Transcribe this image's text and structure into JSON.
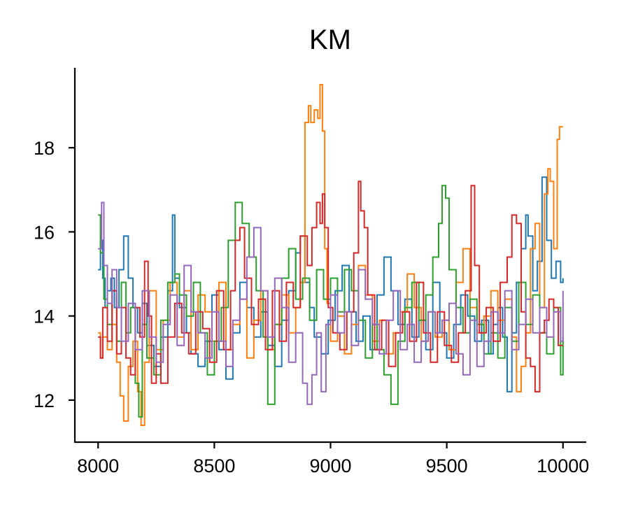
{
  "chart_data": {
    "type": "line",
    "title": "KM",
    "xlabel": "",
    "ylabel": "",
    "xlim": [
      7900,
      10100
    ],
    "ylim": [
      11,
      19.9
    ],
    "xticks": [
      8000,
      8500,
      9000,
      9500,
      10000
    ],
    "yticks": [
      12,
      14,
      16,
      18
    ],
    "xtick_labels": [
      "8000",
      "8500",
      "9000",
      "9500",
      "10000"
    ],
    "ytick_labels": [
      "12",
      "14",
      "16",
      "18"
    ],
    "grid": false,
    "legend": "none",
    "series": [
      {
        "color": "#1f77b4",
        "x": [
          8000,
          8010,
          8020,
          8030,
          8040,
          8055,
          8070,
          8090,
          8110,
          8130,
          8150,
          8170,
          8190,
          8210,
          8240,
          8270,
          8300,
          8320,
          8330,
          8350,
          8380,
          8400,
          8430,
          8460,
          8490,
          8520,
          8550,
          8580,
          8610,
          8640,
          8670,
          8700,
          8730,
          8760,
          8790,
          8820,
          8850,
          8870,
          8890,
          8910,
          8930,
          8960,
          8990,
          9020,
          9050,
          9080,
          9110,
          9140,
          9170,
          9200,
          9230,
          9260,
          9290,
          9320,
          9350,
          9380,
          9410,
          9440,
          9470,
          9500,
          9530,
          9560,
          9590,
          9620,
          9650,
          9680,
          9700,
          9720,
          9740,
          9760,
          9780,
          9800,
          9820,
          9840,
          9850,
          9870,
          9890,
          9910,
          9930,
          9950,
          9970,
          9990,
          10000
        ],
        "y": [
          15.1,
          15.8,
          14.9,
          14.2,
          14.6,
          14.9,
          14.2,
          15.1,
          15.9,
          14.9,
          14.2,
          13.6,
          14.3,
          13.3,
          12.8,
          13.5,
          14.6,
          16.4,
          14.9,
          14.2,
          13.6,
          13.1,
          12.8,
          13.4,
          14.5,
          13.2,
          12.5,
          13.6,
          14.8,
          14.2,
          13.5,
          14.1,
          13.3,
          12.8,
          13.9,
          14.6,
          15.5,
          15.9,
          14.8,
          14.2,
          13.5,
          13.1,
          13.9,
          14.6,
          15.2,
          14.1,
          13.4,
          14.0,
          13.2,
          14.5,
          15.4,
          14.6,
          13.8,
          14.4,
          13.5,
          13.9,
          13.2,
          14.8,
          13.6,
          13.0,
          13.8,
          14.5,
          14.0,
          13.4,
          13.9,
          13.1,
          13.8,
          14.2,
          13.5,
          12.2,
          13.6,
          14.8,
          15.6,
          16.4,
          15.9,
          14.6,
          15.3,
          17.3,
          15.8,
          14.9,
          15.3,
          14.8,
          14.9
        ]
      },
      {
        "color": "#ff7f0e",
        "x": [
          8000,
          8010,
          8020,
          8040,
          8060,
          8080,
          8095,
          8110,
          8130,
          8150,
          8170,
          8185,
          8200,
          8220,
          8250,
          8280,
          8310,
          8340,
          8370,
          8400,
          8430,
          8460,
          8490,
          8520,
          8550,
          8580,
          8610,
          8640,
          8670,
          8700,
          8730,
          8760,
          8790,
          8820,
          8850,
          8870,
          8890,
          8905,
          8915,
          8930,
          8945,
          8955,
          8965,
          8975,
          8985,
          9000,
          9030,
          9060,
          9090,
          9120,
          9150,
          9180,
          9210,
          9240,
          9270,
          9300,
          9330,
          9360,
          9390,
          9420,
          9450,
          9480,
          9510,
          9540,
          9570,
          9600,
          9630,
          9660,
          9690,
          9720,
          9750,
          9780,
          9800,
          9820,
          9840,
          9860,
          9880,
          9900,
          9920,
          9935,
          9945,
          9960,
          9975,
          9985,
          10000
        ],
        "y": [
          13.6,
          13.0,
          13.5,
          13.2,
          13.8,
          12.9,
          12.1,
          11.5,
          12.8,
          13.4,
          12.2,
          11.4,
          12.9,
          14.6,
          13.2,
          13.9,
          14.8,
          13.5,
          14.6,
          13.2,
          14.5,
          14.1,
          13.4,
          14.8,
          13.2,
          13.8,
          14.4,
          13.0,
          13.9,
          14.6,
          13.2,
          13.8,
          14.5,
          13.6,
          14.2,
          14.8,
          18.6,
          19.0,
          18.6,
          18.9,
          18.7,
          19.5,
          18.4,
          15.6,
          14.3,
          13.4,
          14.0,
          13.1,
          13.8,
          15.2,
          14.5,
          13.4,
          13.9,
          13.1,
          13.6,
          14.1,
          15.0,
          14.2,
          13.4,
          14.1,
          13.5,
          13.9,
          13.2,
          14.8,
          15.6,
          14.2,
          13.6,
          14.0,
          14.6,
          13.9,
          14.4,
          13.5,
          12.2,
          12.8,
          13.6,
          15.6,
          16.2,
          14.2,
          16.9,
          17.5,
          17.2,
          15.6,
          18.2,
          18.5,
          18.5
        ]
      },
      {
        "color": "#2ca02c",
        "x": [
          8000,
          8010,
          8025,
          8040,
          8060,
          8080,
          8100,
          8120,
          8140,
          8160,
          8175,
          8190,
          8210,
          8240,
          8270,
          8300,
          8330,
          8350,
          8380,
          8410,
          8440,
          8470,
          8500,
          8530,
          8560,
          8590,
          8620,
          8650,
          8680,
          8710,
          8730,
          8760,
          8790,
          8820,
          8850,
          8880,
          8910,
          8940,
          8970,
          9000,
          9030,
          9060,
          9090,
          9120,
          9150,
          9180,
          9200,
          9230,
          9260,
          9290,
          9320,
          9350,
          9380,
          9410,
          9440,
          9465,
          9480,
          9495,
          9510,
          9540,
          9570,
          9600,
          9630,
          9660,
          9690,
          9720,
          9750,
          9780,
          9810,
          9840,
          9870,
          9900,
          9930,
          9960,
          9990,
          10000
        ],
        "y": [
          16.4,
          15.5,
          14.4,
          13.8,
          14.6,
          13.4,
          14.8,
          13.6,
          14.2,
          12.4,
          11.6,
          13.8,
          13.0,
          12.6,
          13.9,
          14.8,
          15.0,
          14.5,
          14.0,
          14.8,
          13.6,
          12.6,
          13.4,
          14.2,
          15.8,
          16.7,
          16.2,
          15.4,
          14.6,
          13.5,
          11.9,
          13.8,
          14.9,
          15.6,
          14.4,
          14.9,
          13.9,
          15.1,
          14.4,
          14.9,
          14.1,
          15.1,
          14.6,
          13.9,
          13.0,
          13.8,
          13.2,
          12.6,
          11.9,
          13.4,
          14.2,
          14.8,
          13.9,
          14.5,
          15.4,
          16.2,
          17.1,
          16.8,
          15.1,
          14.2,
          13.6,
          14.4,
          13.8,
          13.1,
          13.6,
          13.0,
          14.2,
          13.4,
          14.8,
          13.8,
          14.5,
          13.6,
          13.1,
          14.2,
          12.6,
          13.5
        ]
      },
      {
        "color": "#d62728",
        "x": [
          8000,
          8010,
          8020,
          8040,
          8060,
          8080,
          8100,
          8120,
          8140,
          8160,
          8180,
          8200,
          8215,
          8230,
          8250,
          8270,
          8300,
          8330,
          8360,
          8390,
          8420,
          8450,
          8480,
          8510,
          8540,
          8570,
          8590,
          8610,
          8630,
          8660,
          8690,
          8720,
          8750,
          8780,
          8810,
          8840,
          8870,
          8900,
          8920,
          8940,
          8955,
          8965,
          8975,
          8990,
          9010,
          9040,
          9070,
          9100,
          9120,
          9130,
          9145,
          9160,
          9190,
          9220,
          9250,
          9280,
          9310,
          9340,
          9370,
          9400,
          9430,
          9460,
          9490,
          9520,
          9550,
          9580,
          9605,
          9620,
          9640,
          9670,
          9700,
          9730,
          9760,
          9780,
          9800,
          9820,
          9840,
          9860,
          9880,
          9900,
          9920,
          9940,
          9960,
          9980,
          10000
        ],
        "y": [
          13.5,
          13.0,
          14.2,
          13.4,
          14.6,
          13.1,
          14.2,
          13.0,
          12.6,
          14.2,
          13.5,
          15.3,
          14.0,
          12.4,
          13.1,
          12.4,
          13.5,
          14.3,
          13.6,
          13.1,
          14.1,
          13.7,
          12.9,
          14.6,
          13.2,
          14.6,
          15.8,
          16.1,
          14.9,
          13.8,
          14.4,
          13.2,
          14.6,
          13.4,
          14.8,
          14.2,
          15.9,
          15.2,
          16.1,
          16.7,
          16.2,
          16.9,
          16.1,
          14.2,
          13.6,
          13.2,
          14.1,
          15.5,
          17.2,
          16.5,
          16.1,
          14.5,
          13.2,
          13.9,
          12.8,
          13.6,
          14.1,
          13.4,
          14.8,
          13.6,
          12.9,
          14.1,
          13.3,
          12.9,
          13.6,
          14.6,
          17.1,
          15.2,
          13.6,
          14.2,
          13.4,
          14.8,
          15.4,
          16.4,
          16.2,
          14.1,
          13.0,
          12.8,
          12.2,
          13.6,
          13.9,
          14.4,
          14.2,
          13.3,
          13.3
        ]
      },
      {
        "color": "#9467bd",
        "x": [
          8000,
          8015,
          8025,
          8040,
          8060,
          8080,
          8100,
          8130,
          8160,
          8190,
          8220,
          8250,
          8280,
          8310,
          8340,
          8370,
          8400,
          8430,
          8460,
          8490,
          8520,
          8550,
          8580,
          8610,
          8640,
          8670,
          8700,
          8730,
          8760,
          8790,
          8820,
          8850,
          8880,
          8900,
          8920,
          8940,
          8960,
          8980,
          9000,
          9030,
          9060,
          9090,
          9120,
          9150,
          9180,
          9210,
          9240,
          9270,
          9300,
          9330,
          9360,
          9390,
          9420,
          9450,
          9480,
          9510,
          9540,
          9570,
          9600,
          9630,
          9660,
          9690,
          9720,
          9750,
          9780,
          9810,
          9840,
          9870,
          9900,
          9930,
          9960,
          9990,
          10000
        ],
        "y": [
          15.6,
          16.7,
          15.2,
          14.3,
          15.1,
          14.2,
          13.4,
          14.3,
          13.2,
          14.6,
          13.5,
          12.9,
          13.8,
          14.5,
          13.3,
          15.2,
          14.1,
          13.6,
          13.0,
          14.1,
          13.4,
          12.8,
          13.9,
          14.4,
          15.4,
          16.1,
          14.6,
          13.5,
          14.9,
          14.2,
          12.9,
          13.6,
          12.4,
          11.9,
          12.6,
          13.6,
          12.2,
          13.8,
          14.5,
          13.6,
          14.1,
          13.3,
          15.1,
          14.4,
          13.8,
          13.1,
          13.9,
          14.6,
          13.2,
          13.8,
          12.9,
          13.4,
          14.1,
          13.6,
          13.9,
          14.3,
          13.1,
          12.6,
          13.9,
          12.8,
          13.4,
          14.1,
          13.6,
          14.6,
          13.2,
          13.8,
          14.4,
          13.6,
          14.2,
          13.5,
          14.1,
          13.4,
          14.6
        ]
      }
    ]
  }
}
